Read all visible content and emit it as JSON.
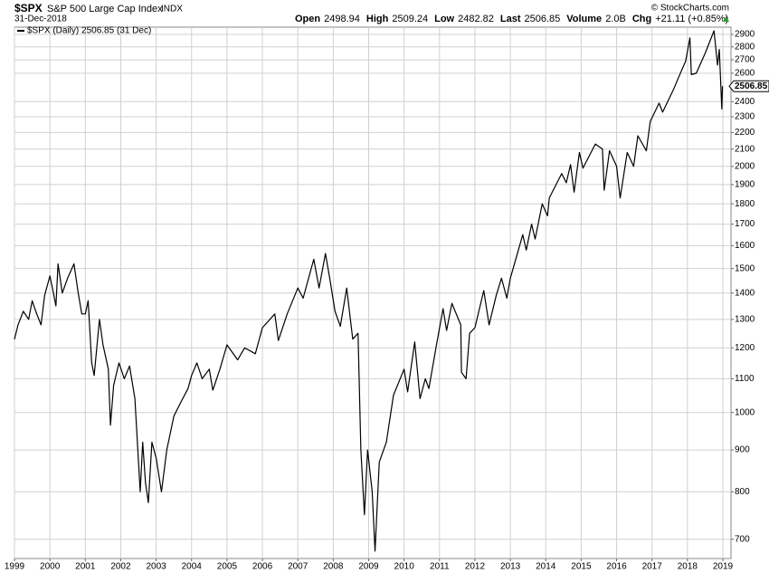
{
  "chart_data": {
    "type": "line",
    "title": "$SPX",
    "subtitle": "S&P 500 Large Cap Index",
    "exchange": "INDX",
    "date": "31-Dec-2018",
    "credit": "© StockCharts.com",
    "stats": [
      {
        "label": "Open",
        "value": "2498.94"
      },
      {
        "label": "High",
        "value": "2509.24"
      },
      {
        "label": "Low",
        "value": "2482.82"
      },
      {
        "label": "Last",
        "value": "2506.85"
      },
      {
        "label": "Volume",
        "value": "2.0B"
      },
      {
        "label": "Chg",
        "value": "+21.11 (+0.85%)"
      }
    ],
    "log_scale": true,
    "grid": true,
    "last_value": 2506.85,
    "xlim": [
      1999,
      2019.23
    ],
    "ylim": [
      663,
      2960
    ],
    "xticks": [
      1999,
      2000,
      2001,
      2002,
      2003,
      2004,
      2005,
      2006,
      2007,
      2008,
      2009,
      2010,
      2011,
      2012,
      2013,
      2014,
      2015,
      2016,
      2017,
      2018,
      2019
    ],
    "yticks": [
      700,
      800,
      900,
      1000,
      1100,
      1200,
      1300,
      1400,
      1500,
      1600,
      1700,
      1800,
      1900,
      2000,
      2100,
      2200,
      2300,
      2400,
      2600,
      2700,
      2800,
      2900
    ],
    "x": [
      1999.0,
      1999.1,
      1999.25,
      1999.4,
      1999.5,
      1999.6,
      1999.75,
      1999.85,
      2000.0,
      2000.1,
      2000.17,
      2000.23,
      2000.35,
      2000.5,
      2000.68,
      2000.8,
      2000.9,
      2001.0,
      2001.08,
      2001.18,
      2001.25,
      2001.4,
      2001.5,
      2001.65,
      2001.71,
      2001.8,
      2001.95,
      2002.1,
      2002.25,
      2002.4,
      2002.55,
      2002.62,
      2002.7,
      2002.78,
      2002.88,
      2003.0,
      2003.15,
      2003.3,
      2003.5,
      2003.7,
      2003.9,
      2004.0,
      2004.15,
      2004.3,
      2004.5,
      2004.6,
      2004.8,
      2005.0,
      2005.3,
      2005.5,
      2005.8,
      2006.0,
      2006.35,
      2006.45,
      2006.7,
      2007.0,
      2007.15,
      2007.45,
      2007.6,
      2007.78,
      2007.9,
      2008.05,
      2008.2,
      2008.38,
      2008.55,
      2008.7,
      2008.78,
      2008.88,
      2008.97,
      2009.1,
      2009.18,
      2009.3,
      2009.5,
      2009.7,
      2010.0,
      2010.1,
      2010.3,
      2010.45,
      2010.6,
      2010.7,
      2010.9,
      2011.1,
      2011.2,
      2011.35,
      2011.6,
      2011.62,
      2011.75,
      2011.85,
      2012.0,
      2012.25,
      2012.4,
      2012.6,
      2012.75,
      2012.9,
      2013.0,
      2013.35,
      2013.45,
      2013.6,
      2013.7,
      2013.9,
      2014.05,
      2014.1,
      2014.45,
      2014.58,
      2014.7,
      2014.8,
      2014.95,
      2015.05,
      2015.4,
      2015.6,
      2015.65,
      2015.8,
      2016.0,
      2016.1,
      2016.3,
      2016.48,
      2016.6,
      2016.84,
      2016.95,
      2017.2,
      2017.3,
      2017.6,
      2017.75,
      2017.95,
      2018.07,
      2018.11,
      2018.25,
      2018.5,
      2018.75,
      2018.85,
      2018.9,
      2018.97,
      2018.99
    ],
    "series": [
      {
        "name": "$SPX (Daily) 2506.85 (31 Dec)",
        "color": "#000000",
        "values": [
          1229,
          1280,
          1330,
          1300,
          1370,
          1330,
          1280,
          1390,
          1469,
          1400,
          1350,
          1520,
          1400,
          1460,
          1520,
          1400,
          1320,
          1320,
          1370,
          1150,
          1110,
          1300,
          1210,
          1130,
          965,
          1080,
          1150,
          1100,
          1140,
          1040,
          800,
          920,
          820,
          776,
          920,
          880,
          800,
          900,
          990,
          1030,
          1070,
          1110,
          1150,
          1100,
          1130,
          1065,
          1130,
          1210,
          1160,
          1200,
          1180,
          1270,
          1320,
          1225,
          1320,
          1420,
          1380,
          1540,
          1420,
          1565,
          1460,
          1330,
          1275,
          1420,
          1230,
          1250,
          900,
          750,
          900,
          800,
          677,
          870,
          920,
          1050,
          1130,
          1060,
          1220,
          1040,
          1100,
          1070,
          1200,
          1340,
          1260,
          1360,
          1280,
          1120,
          1100,
          1250,
          1270,
          1410,
          1280,
          1390,
          1460,
          1380,
          1460,
          1650,
          1580,
          1700,
          1630,
          1800,
          1740,
          1830,
          1960,
          1910,
          2010,
          1860,
          2080,
          1990,
          2130,
          2100,
          1870,
          2090,
          2000,
          1830,
          2080,
          2000,
          2180,
          2090,
          2270,
          2390,
          2330,
          2480,
          2570,
          2690,
          2872,
          2590,
          2600,
          2750,
          2930,
          2660,
          2780,
          2351,
          2506.85
        ]
      }
    ]
  }
}
